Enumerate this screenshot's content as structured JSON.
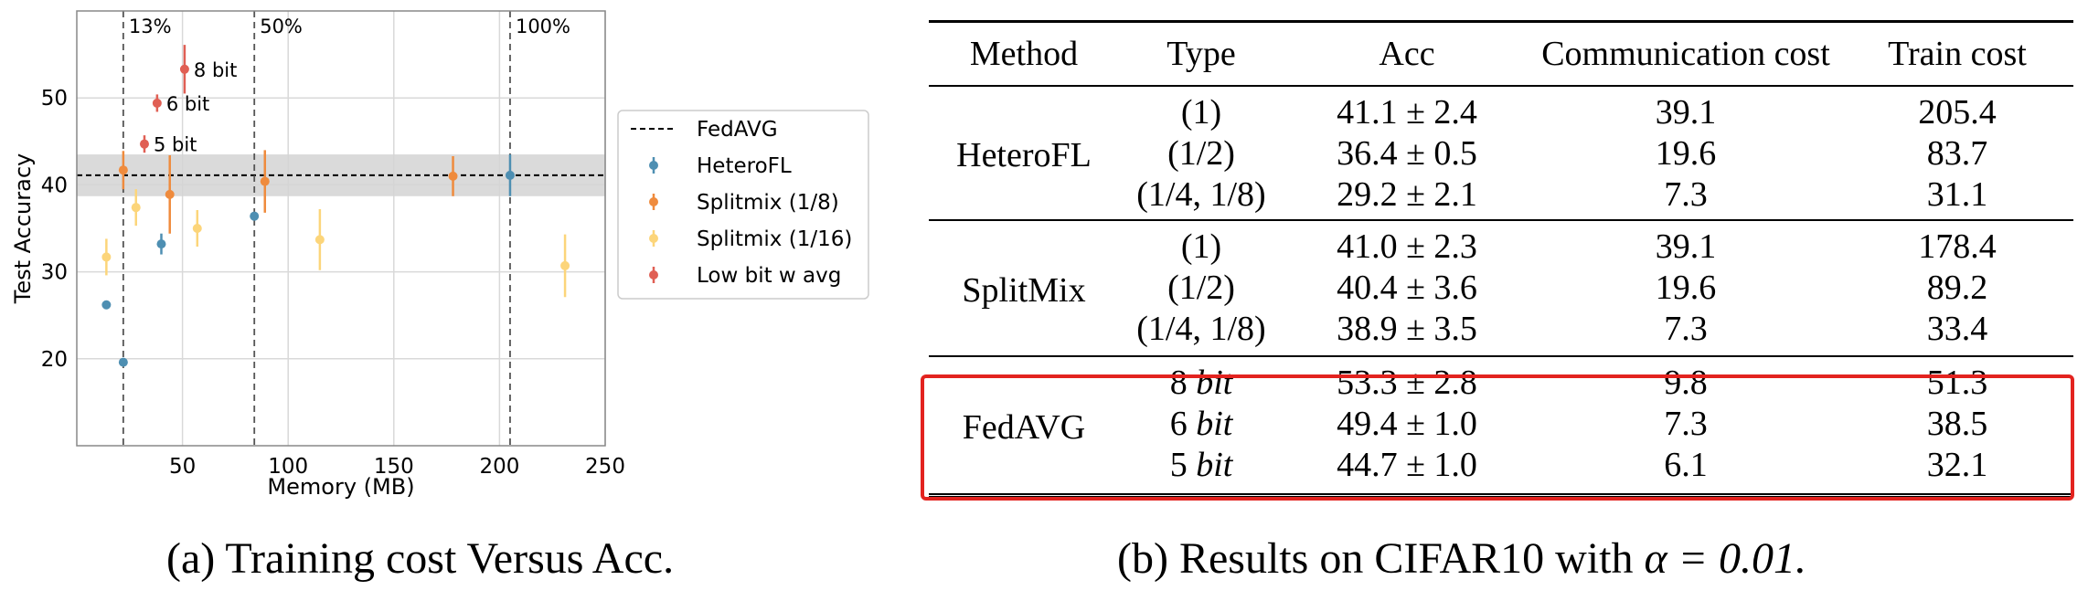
{
  "chart_data": {
    "type": "scatter",
    "xlabel": "Memory (MB)",
    "ylabel": "Test Accuracy",
    "xlim": [
      0,
      250
    ],
    "ylim": [
      10,
      60
    ],
    "xticks": [
      50,
      100,
      150,
      200,
      250
    ],
    "yticks": [
      20,
      30,
      40,
      50
    ],
    "grid": true,
    "legend_position": "right-outside",
    "reference_line": {
      "name": "FedAVG",
      "y": 41.1,
      "band": [
        38.7,
        43.5
      ],
      "style": "dashed"
    },
    "vlines": [
      {
        "x": 22,
        "label": "13%"
      },
      {
        "x": 84,
        "label": "50%"
      },
      {
        "x": 205,
        "label": "100%"
      }
    ],
    "series": [
      {
        "name": "HeteroFL",
        "color": "#4e8fb2",
        "points": [
          {
            "x": 205,
            "y": 41.1,
            "err": 2.4
          },
          {
            "x": 84,
            "y": 36.4,
            "err": 0.5
          },
          {
            "x": 40,
            "y": 33.2,
            "err": 1.2
          },
          {
            "x": 22,
            "y": 19.6,
            "err": 0.4
          },
          {
            "x": 14,
            "y": 26.2,
            "err": 0.4
          }
        ]
      },
      {
        "name": "Splitmix (1/8)",
        "color": "#ef8b3d",
        "points": [
          {
            "x": 178,
            "y": 41.0,
            "err": 2.3
          },
          {
            "x": 89,
            "y": 40.4,
            "err": 3.6
          },
          {
            "x": 44,
            "y": 38.9,
            "err": 4.5
          },
          {
            "x": 22,
            "y": 41.7,
            "err": 2.2
          }
        ]
      },
      {
        "name": "Splitmix (1/16)",
        "color": "#fcd57a",
        "points": [
          {
            "x": 231,
            "y": 30.7,
            "err": 3.6
          },
          {
            "x": 115,
            "y": 33.7,
            "err": 3.5
          },
          {
            "x": 57,
            "y": 35.0,
            "err": 2.1
          },
          {
            "x": 28,
            "y": 37.4,
            "err": 2.1
          },
          {
            "x": 14,
            "y": 31.7,
            "err": 2.1
          }
        ]
      },
      {
        "name": "Low bit w avg",
        "color": "#e05f54",
        "points": [
          {
            "x": 51,
            "y": 53.3,
            "err": 2.8,
            "label": "8 bit"
          },
          {
            "x": 38,
            "y": 49.4,
            "err": 1.0,
            "label": "6 bit"
          },
          {
            "x": 32,
            "y": 44.7,
            "err": 1.0,
            "label": "5 bit"
          }
        ]
      }
    ]
  },
  "legend": {
    "items": [
      "FedAVG",
      "HeteroFL",
      "Splitmix (1/8)",
      "Splitmix (1/16)",
      "Low bit w avg"
    ]
  },
  "captions": {
    "left": "(a) Training cost Versus Acc.",
    "right_prefix": "(b) Results on CIFAR10 with ",
    "right_math": "α = 0.01."
  },
  "table": {
    "headers": [
      "Method",
      "Type",
      "Acc",
      "Communication cost",
      "Train cost"
    ],
    "groups": [
      {
        "method": "HeteroFL",
        "rows": [
          {
            "type": "(1)",
            "acc": "41.1 ± 2.4",
            "comm": "39.1",
            "train": "205.4"
          },
          {
            "type": "(1/2)",
            "acc": "36.4 ± 0.5",
            "comm": "19.6",
            "train": "83.7"
          },
          {
            "type": "(1/4, 1/8)",
            "acc": "29.2 ± 2.1",
            "comm": "7.3",
            "train": "31.1"
          }
        ]
      },
      {
        "method": "SplitMix",
        "rows": [
          {
            "type": "(1)",
            "acc": "41.0 ± 2.3",
            "comm": "39.1",
            "train": "178.4"
          },
          {
            "type": "(1/2)",
            "acc": "40.4 ± 3.6",
            "comm": "19.6",
            "train": "89.2"
          },
          {
            "type": "(1/4, 1/8)",
            "acc": "38.9 ± 3.5",
            "comm": "7.3",
            "train": "33.4"
          }
        ]
      },
      {
        "method": "FedAVG",
        "rows": [
          {
            "type_num": "8",
            "type_unit": "bit",
            "acc": "53.3 ± 2.8",
            "comm": "9.8",
            "train": "51.3"
          },
          {
            "type_num": "6",
            "type_unit": "bit",
            "acc": "49.4 ± 1.0",
            "comm": "7.3",
            "train": "38.5"
          },
          {
            "type_num": "5",
            "type_unit": "bit",
            "acc": "44.7 ± 1.0",
            "comm": "6.1",
            "train": "32.1"
          }
        ]
      }
    ]
  }
}
